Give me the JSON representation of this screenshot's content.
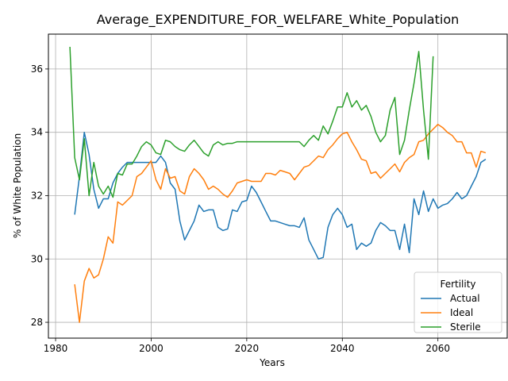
{
  "chart_data": {
    "type": "line",
    "title": "Average_EXPENDITURE_FOR_WELFARE_White_Population",
    "xlabel": "Years",
    "ylabel": "% of White Population",
    "xlim": [
      1978.5,
      2074.5
    ],
    "ylim": [
      27.5,
      37.1
    ],
    "xticks": [
      1980,
      2000,
      2020,
      2040,
      2060
    ],
    "yticks": [
      28,
      30,
      32,
      34,
      36
    ],
    "grid": true,
    "legend": {
      "title": "Fertility",
      "position": "lower right"
    },
    "series": [
      {
        "name": "Actual",
        "color": "#1f77b4",
        "x": [
          1984,
          1985,
          1986,
          1987,
          1988,
          1989,
          1990,
          1991,
          1992,
          1993,
          1994,
          1995,
          1996,
          1997,
          1998,
          1999,
          2000,
          2001,
          2002,
          2003,
          2004,
          2005,
          2006,
          2007,
          2008,
          2009,
          2010,
          2011,
          2012,
          2013,
          2014,
          2015,
          2016,
          2017,
          2018,
          2019,
          2020,
          2021,
          2022,
          2023,
          2024,
          2025,
          2026,
          2027,
          2028,
          2029,
          2030,
          2031,
          2032,
          2033,
          2034,
          2035,
          2036,
          2037,
          2038,
          2039,
          2040,
          2041,
          2042,
          2043,
          2044,
          2045,
          2046,
          2047,
          2048,
          2049,
          2050,
          2051,
          2052,
          2053,
          2054,
          2055,
          2056,
          2057,
          2058,
          2059,
          2060,
          2061,
          2062,
          2063,
          2064,
          2065,
          2066,
          2067,
          2068,
          2069,
          2070
        ],
        "values": [
          31.4,
          32.6,
          34.0,
          33.3,
          32.2,
          31.6,
          31.9,
          31.9,
          32.4,
          32.7,
          32.9,
          33.05,
          33.05,
          33.05,
          33.05,
          33.05,
          33.05,
          33.05,
          33.25,
          33.05,
          32.4,
          32.2,
          31.2,
          30.6,
          30.9,
          31.2,
          31.7,
          31.5,
          31.55,
          31.55,
          31.0,
          30.9,
          30.95,
          31.55,
          31.5,
          31.8,
          31.85,
          32.3,
          32.1,
          31.8,
          31.5,
          31.2,
          31.2,
          31.15,
          31.1,
          31.05,
          31.05,
          31.0,
          31.3,
          30.6,
          30.3,
          30.0,
          30.05,
          31.0,
          31.4,
          31.6,
          31.4,
          31.0,
          31.1,
          30.3,
          30.5,
          30.4,
          30.5,
          30.9,
          31.15,
          31.05,
          30.9,
          30.9,
          30.3,
          31.1,
          30.2,
          31.9,
          31.4,
          32.15,
          31.5,
          31.9,
          31.6,
          31.7,
          31.75,
          31.9,
          32.1,
          31.9,
          32.0,
          32.3,
          32.6,
          33.05,
          33.15
        ]
      },
      {
        "name": "Ideal",
        "color": "#ff7f0e",
        "x": [
          1984,
          1985,
          1986,
          1987,
          1988,
          1989,
          1990,
          1991,
          1992,
          1993,
          1994,
          1995,
          1996,
          1997,
          1998,
          1999,
          2000,
          2001,
          2002,
          2003,
          2004,
          2005,
          2006,
          2007,
          2008,
          2009,
          2010,
          2011,
          2012,
          2013,
          2014,
          2015,
          2016,
          2017,
          2018,
          2019,
          2020,
          2021,
          2022,
          2023,
          2024,
          2025,
          2026,
          2027,
          2028,
          2029,
          2030,
          2031,
          2032,
          2033,
          2034,
          2035,
          2036,
          2037,
          2038,
          2039,
          2040,
          2041,
          2042,
          2043,
          2044,
          2045,
          2046,
          2047,
          2048,
          2049,
          2050,
          2051,
          2052,
          2053,
          2054,
          2055,
          2056,
          2057,
          2058,
          2059,
          2060,
          2061,
          2062,
          2063,
          2064,
          2065,
          2066,
          2067,
          2068,
          2069,
          2070
        ],
        "values": [
          29.2,
          28.0,
          29.3,
          29.7,
          29.4,
          29.5,
          30.0,
          30.7,
          30.5,
          31.8,
          31.7,
          31.85,
          32.0,
          32.6,
          32.7,
          32.9,
          33.1,
          32.5,
          32.2,
          32.85,
          32.55,
          32.6,
          32.15,
          32.05,
          32.6,
          32.85,
          32.7,
          32.5,
          32.2,
          32.3,
          32.2,
          32.05,
          31.95,
          32.15,
          32.4,
          32.45,
          32.5,
          32.45,
          32.45,
          32.45,
          32.7,
          32.7,
          32.65,
          32.8,
          32.75,
          32.7,
          32.5,
          32.7,
          32.9,
          32.95,
          33.1,
          33.25,
          33.2,
          33.45,
          33.6,
          33.8,
          33.95,
          34.0,
          33.7,
          33.45,
          33.15,
          33.1,
          32.7,
          32.75,
          32.55,
          32.7,
          32.85,
          33.0,
          32.75,
          33.05,
          33.2,
          33.3,
          33.7,
          33.75,
          33.95,
          34.1,
          34.25,
          34.15,
          34.0,
          33.9,
          33.7,
          33.7,
          33.35,
          33.35,
          32.9,
          33.4,
          33.35
        ]
      },
      {
        "name": "Sterile",
        "color": "#2ca02c",
        "x": [
          1983,
          1984,
          1985,
          1986,
          1987,
          1988,
          1989,
          1990,
          1991,
          1992,
          1993,
          1994,
          1995,
          1996,
          1997,
          1998,
          1999,
          2000,
          2001,
          2002,
          2003,
          2004,
          2005,
          2006,
          2007,
          2008,
          2009,
          2010,
          2011,
          2012,
          2013,
          2014,
          2015,
          2016,
          2017,
          2018,
          2019,
          2020,
          2021,
          2022,
          2023,
          2024,
          2025,
          2026,
          2027,
          2028,
          2029,
          2030,
          2031,
          2032,
          2033,
          2034,
          2035,
          2036,
          2037,
          2038,
          2039,
          2040,
          2041,
          2042,
          2043,
          2044,
          2045,
          2046,
          2047,
          2048,
          2049,
          2050,
          2051,
          2052,
          2053,
          2054,
          2055,
          2056,
          2057,
          2058,
          2059
        ],
        "values": [
          36.7,
          33.2,
          32.5,
          33.8,
          32.0,
          33.05,
          32.3,
          32.05,
          32.3,
          31.95,
          32.7,
          32.65,
          33.0,
          33.0,
          33.25,
          33.55,
          33.7,
          33.6,
          33.35,
          33.3,
          33.75,
          33.7,
          33.55,
          33.45,
          33.4,
          33.6,
          33.75,
          33.55,
          33.35,
          33.25,
          33.6,
          33.7,
          33.6,
          33.65,
          33.65,
          33.7,
          33.7,
          33.7,
          33.7,
          33.7,
          33.7,
          33.7,
          33.7,
          33.7,
          33.7,
          33.7,
          33.7,
          33.7,
          33.7,
          33.55,
          33.75,
          33.9,
          33.75,
          34.2,
          33.95,
          34.35,
          34.8,
          34.8,
          35.25,
          34.8,
          35.0,
          34.7,
          34.85,
          34.5,
          34.0,
          33.7,
          33.9,
          34.7,
          35.1,
          33.3,
          33.75,
          34.7,
          35.55,
          36.55,
          34.7,
          33.15,
          36.4
        ]
      }
    ]
  }
}
